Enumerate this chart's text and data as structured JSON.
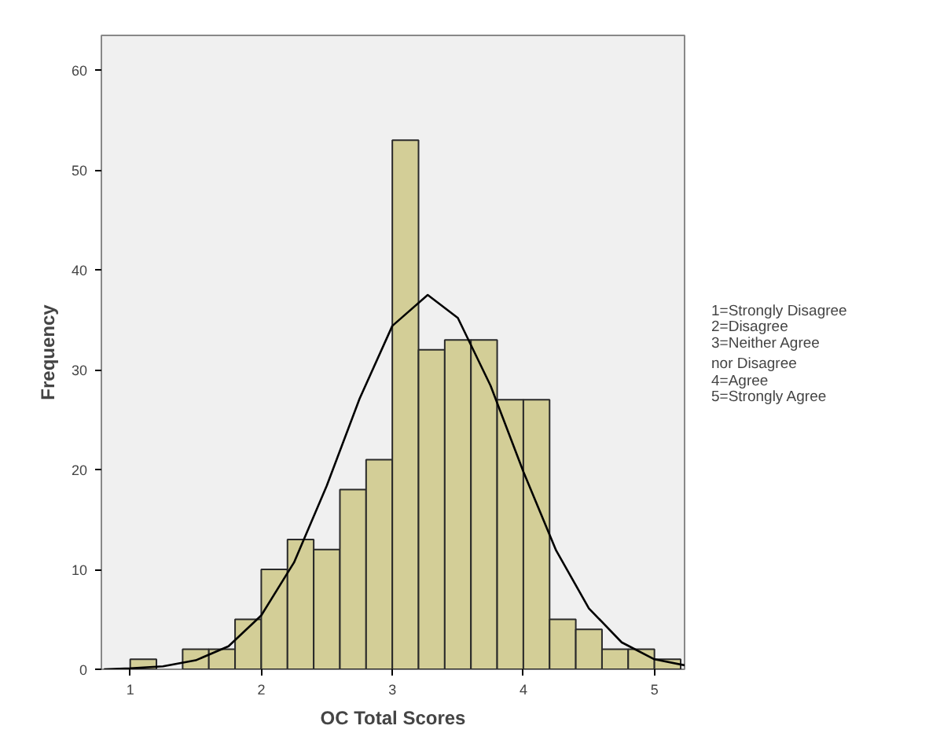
{
  "chart_data": {
    "type": "histogram",
    "xlabel": "OC Total Scores",
    "ylabel": "Frequency",
    "bins": [
      1.0,
      1.2,
      1.4,
      1.6,
      1.8,
      2.0,
      2.2,
      2.4,
      2.6,
      2.8,
      3.0,
      3.2,
      3.4,
      3.6,
      3.8,
      4.0,
      4.2,
      4.4,
      4.6,
      4.8,
      5.0,
      5.2
    ],
    "values": [
      1,
      0,
      2,
      2,
      5,
      10,
      13,
      12,
      18,
      21,
      53,
      32,
      33,
      33,
      27,
      27,
      5,
      4,
      2,
      2,
      1
    ],
    "color": "#d3ce97",
    "series": [
      {
        "type": "line",
        "color": "#000000",
        "x": [
          0.8,
          1.0,
          1.25,
          1.5,
          1.75,
          2.0,
          2.25,
          2.5,
          2.75,
          3.0,
          3.27,
          3.5,
          3.75,
          4.0,
          4.25,
          4.5,
          4.75,
          5.0,
          5.23
        ],
        "values": [
          0.0,
          0.1,
          0.3,
          0.9,
          2.3,
          5.4,
          10.7,
          18.4,
          27.1,
          34.4,
          37.5,
          35.2,
          28.4,
          19.8,
          11.9,
          6.1,
          2.7,
          1.0,
          0.4
        ]
      }
    ],
    "xlim": [
      0.78,
      5.23
    ],
    "ylim": [
      0,
      63.5
    ],
    "xticks": [
      1,
      2,
      3,
      4,
      5
    ],
    "yticks": [
      0,
      10,
      20,
      30,
      40,
      50,
      60
    ],
    "grid": false,
    "annotations": [
      "1=Strongly Disagree",
      "2=Disagree",
      "3=Neither Agree\n nor Disagree",
      "4=Agree",
      "5=Strongly Agree"
    ]
  }
}
